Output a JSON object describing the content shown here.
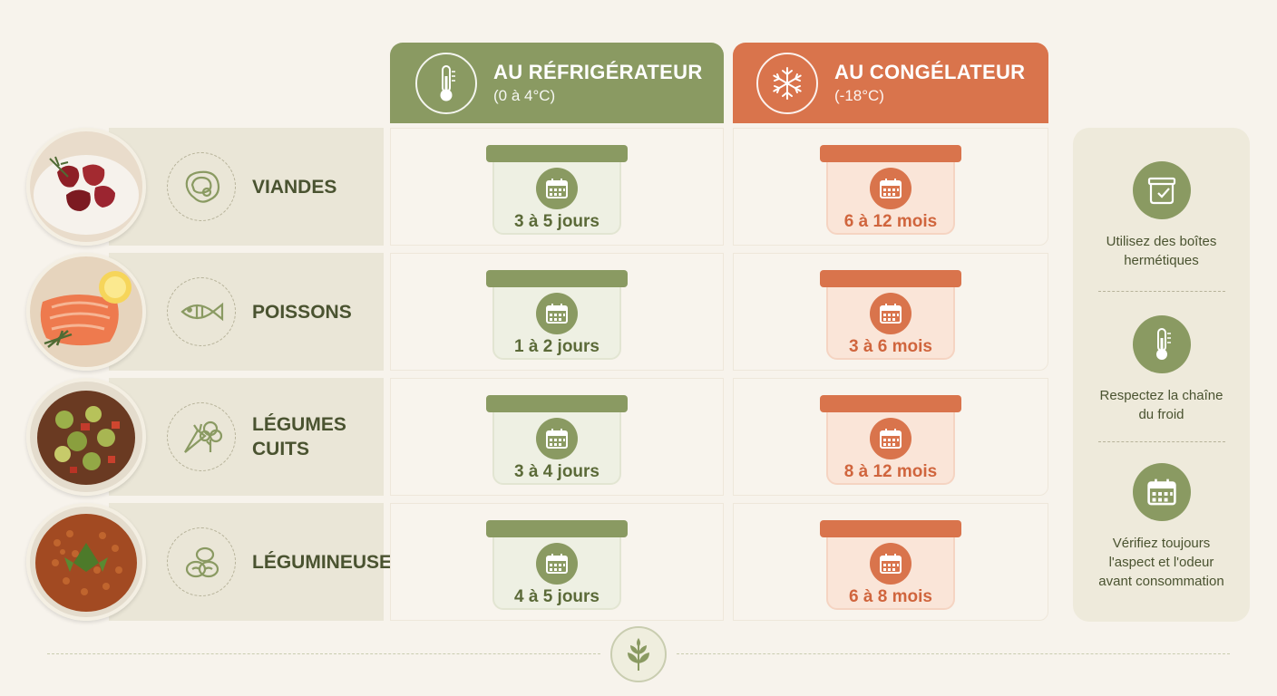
{
  "columns": {
    "fridge": {
      "title": "AU RÉFRIGÉRATEUR",
      "subtitle": "(0 à 4°C)",
      "icon": "thermometer-icon",
      "color": "#8a9a62"
    },
    "freezer": {
      "title": "AU CONGÉLATEUR",
      "subtitle": "(-18°C)",
      "icon": "snowflake-icon",
      "color": "#d9744c"
    }
  },
  "rows": [
    {
      "name": "VIANDES",
      "icon": "meat-icon",
      "photo": "raw-meat-photo",
      "fridge": "3 à 5 jours",
      "freezer": "6 à 12 mois"
    },
    {
      "name": "POISSONS",
      "icon": "fish-icon",
      "photo": "salmon-photo",
      "fridge": "1 à 2 jours",
      "freezer": "3 à 6 mois"
    },
    {
      "name": "LÉGUMES\nCUITS",
      "icon": "vegetables-icon",
      "photo": "cooked-vegetables-photo",
      "fridge": "3 à 4 jours",
      "freezer": "8 à 12 mois"
    },
    {
      "name": "LÉGUMINEUSES",
      "icon": "legumes-icon",
      "photo": "lentils-photo",
      "fridge": "4 à 5 jours",
      "freezer": "6 à 8 mois"
    }
  ],
  "tips": [
    {
      "text": "Utilisez des boîtes\nhermétiques",
      "icon": "container-check-icon"
    },
    {
      "text": "Respectez la chaîne\ndu froid",
      "icon": "thermometer-icon"
    },
    {
      "text": "Vérifiez toujours\nl'aspect et l'odeur\navant consommation",
      "icon": "calendar-icon"
    }
  ],
  "footer": {
    "icon": "leaf-icon"
  }
}
